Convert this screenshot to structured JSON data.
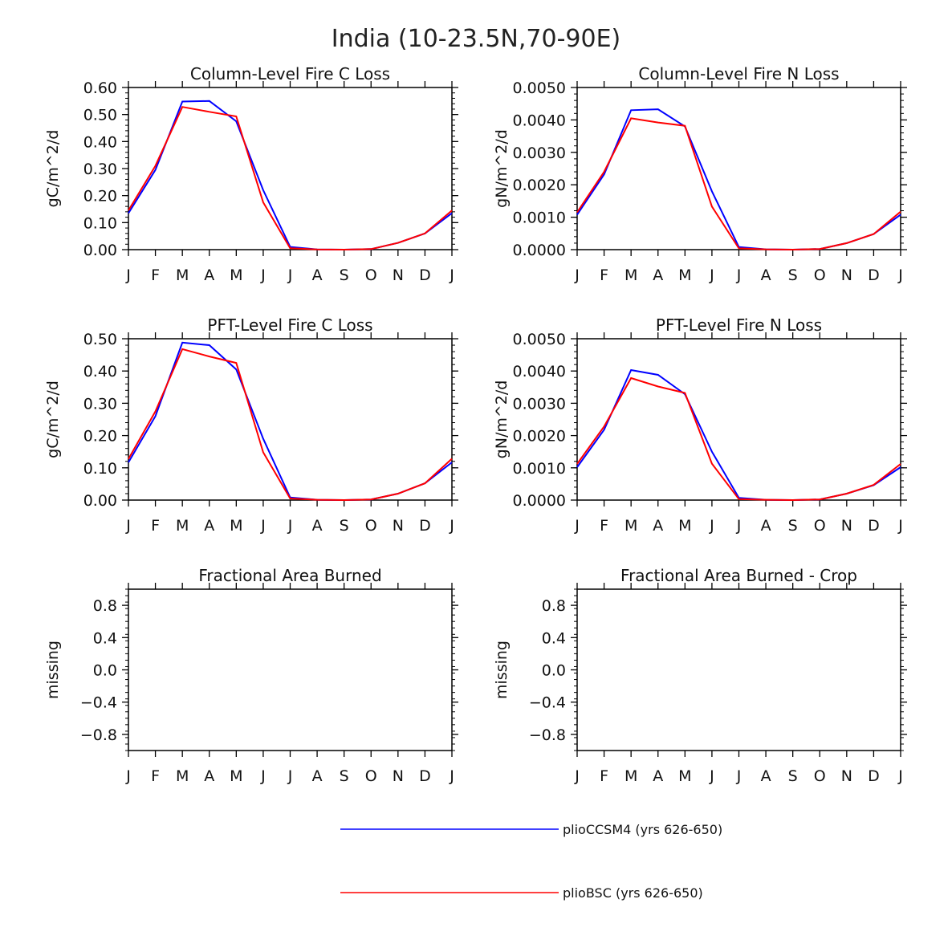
{
  "figure": {
    "title": "India (10-23.5N,70-90E)"
  },
  "chart_data": [
    {
      "type": "line",
      "title": "Column-Level Fire C Loss",
      "ylabel": "gC/m^2/d",
      "xlabel": "",
      "categories": [
        "J",
        "F",
        "M",
        "A",
        "M",
        "J",
        "J",
        "A",
        "S",
        "O",
        "N",
        "D",
        "J"
      ],
      "ylim": [
        0,
        0.6
      ],
      "yticks": [
        0,
        0.1,
        0.2,
        0.3,
        0.4,
        0.5,
        0.6
      ],
      "ytick_labels": [
        "0.00",
        "0.10",
        "0.20",
        "0.30",
        "0.40",
        "0.50",
        "0.60"
      ],
      "series": [
        {
          "name": "plioCCSM4 (yrs 626-650)",
          "color": "#0000ff",
          "values": [
            0.135,
            0.295,
            0.548,
            0.55,
            0.475,
            0.22,
            0.01,
            0.001,
            0.0,
            0.002,
            0.025,
            0.06,
            0.135
          ]
        },
        {
          "name": "plioBSC (yrs 626-650)",
          "color": "#ff0000",
          "values": [
            0.145,
            0.31,
            0.528,
            0.51,
            0.493,
            0.175,
            0.005,
            0.001,
            0.0,
            0.002,
            0.025,
            0.06,
            0.145
          ]
        }
      ]
    },
    {
      "type": "line",
      "title": "Column-Level Fire N Loss",
      "ylabel": "gN/m^2/d",
      "xlabel": "",
      "categories": [
        "J",
        "F",
        "M",
        "A",
        "M",
        "J",
        "J",
        "A",
        "S",
        "O",
        "N",
        "D",
        "J"
      ],
      "ylim": [
        0,
        0.005
      ],
      "yticks": [
        0,
        0.001,
        0.002,
        0.003,
        0.004,
        0.005
      ],
      "ytick_labels": [
        "0.0000",
        "0.0010",
        "0.0020",
        "0.0030",
        "0.0040",
        "0.0050"
      ],
      "series": [
        {
          "name": "plioCCSM4 (yrs 626-650)",
          "color": "#0000ff",
          "values": [
            0.00108,
            0.00232,
            0.0043,
            0.00433,
            0.0038,
            0.0018,
            8e-05,
            1e-05,
            0.0,
            2e-05,
            0.0002,
            0.00048,
            0.00108
          ]
        },
        {
          "name": "plioBSC (yrs 626-650)",
          "color": "#ff0000",
          "values": [
            0.00115,
            0.0024,
            0.00405,
            0.00392,
            0.00382,
            0.00133,
            4e-05,
            1e-05,
            0.0,
            2e-05,
            0.0002,
            0.00048,
            0.00117
          ]
        }
      ]
    },
    {
      "type": "line",
      "title": "PFT-Level Fire C Loss",
      "ylabel": "gC/m^2/d",
      "xlabel": "",
      "categories": [
        "J",
        "F",
        "M",
        "A",
        "M",
        "J",
        "J",
        "A",
        "S",
        "O",
        "N",
        "D",
        "J"
      ],
      "ylim": [
        0,
        0.5
      ],
      "yticks": [
        0,
        0.1,
        0.2,
        0.3,
        0.4,
        0.5
      ],
      "ytick_labels": [
        "0.00",
        "0.10",
        "0.20",
        "0.30",
        "0.40",
        "0.50"
      ],
      "series": [
        {
          "name": "plioCCSM4 (yrs 626-650)",
          "color": "#0000ff",
          "values": [
            0.117,
            0.26,
            0.488,
            0.48,
            0.405,
            0.19,
            0.008,
            0.001,
            0.0,
            0.002,
            0.02,
            0.052,
            0.117
          ]
        },
        {
          "name": "plioBSC (yrs 626-650)",
          "color": "#ff0000",
          "values": [
            0.127,
            0.275,
            0.468,
            0.445,
            0.425,
            0.148,
            0.005,
            0.001,
            0.0,
            0.002,
            0.02,
            0.052,
            0.128
          ]
        }
      ]
    },
    {
      "type": "line",
      "title": "PFT-Level Fire N Loss",
      "ylabel": "gN/m^2/d",
      "xlabel": "",
      "categories": [
        "J",
        "F",
        "M",
        "A",
        "M",
        "J",
        "J",
        "A",
        "S",
        "O",
        "N",
        "D",
        "J"
      ],
      "ylim": [
        0,
        0.005
      ],
      "yticks": [
        0,
        0.001,
        0.002,
        0.003,
        0.004,
        0.005
      ],
      "ytick_labels": [
        "0.0000",
        "0.0010",
        "0.0020",
        "0.0030",
        "0.0040",
        "0.0050"
      ],
      "series": [
        {
          "name": "plioCCSM4 (yrs 626-650)",
          "color": "#0000ff",
          "values": [
            0.00102,
            0.00218,
            0.00403,
            0.00388,
            0.00328,
            0.0015,
            7e-05,
            1e-05,
            0.0,
            2e-05,
            0.0002,
            0.00046,
            0.00102
          ]
        },
        {
          "name": "plioBSC (yrs 626-650)",
          "color": "#ff0000",
          "values": [
            0.00112,
            0.00228,
            0.00378,
            0.00352,
            0.00332,
            0.00113,
            3e-05,
            1e-05,
            0.0,
            2e-05,
            0.0002,
            0.00047,
            0.00112
          ]
        }
      ]
    },
    {
      "type": "line",
      "title": "Fractional Area Burned",
      "ylabel": "missing",
      "xlabel": "",
      "categories": [
        "J",
        "F",
        "M",
        "A",
        "M",
        "J",
        "J",
        "A",
        "S",
        "O",
        "N",
        "D",
        "J"
      ],
      "ylim": [
        -1,
        1
      ],
      "yticks": [
        -0.8,
        -0.4,
        0.0,
        0.4,
        0.8
      ],
      "ytick_labels": [
        "−0.8",
        "−0.4",
        "0.0",
        "0.4",
        "0.8"
      ],
      "series": []
    },
    {
      "type": "line",
      "title": "Fractional Area Burned - Crop",
      "ylabel": "missing",
      "xlabel": "",
      "categories": [
        "J",
        "F",
        "M",
        "A",
        "M",
        "J",
        "J",
        "A",
        "S",
        "O",
        "N",
        "D",
        "J"
      ],
      "ylim": [
        -1,
        1
      ],
      "yticks": [
        -0.8,
        -0.4,
        0.0,
        0.4,
        0.8
      ],
      "ytick_labels": [
        "−0.8",
        "−0.4",
        "0.0",
        "0.4",
        "0.8"
      ],
      "series": []
    }
  ],
  "legend": {
    "items": [
      {
        "label": "plioCCSM4 (yrs 626-650)",
        "color": "#0000ff"
      },
      {
        "label": "plioBSC (yrs 626-650)",
        "color": "#ff0000"
      }
    ]
  }
}
